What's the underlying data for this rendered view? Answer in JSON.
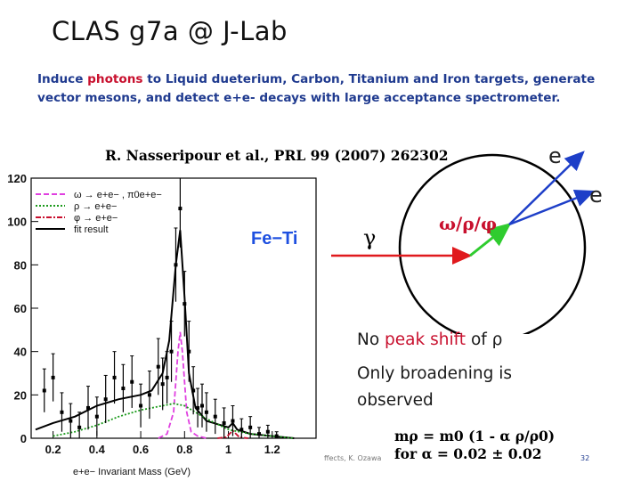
{
  "slide": {
    "title": "CLAS g7a @ J-Lab",
    "intro": {
      "line1_a": "Induce ",
      "line1_photons": "photons",
      "line1_b": " to Liquid dueterium, Carbon, Titanium and Iron  targets, generate",
      "line2": "vector mesons, and detect e+e- decays with large acceptance spectrometer."
    },
    "reference": "R. Nasseripour et al., PRL 99 (2007) 262302",
    "footer": "ffects, K. Ozawa",
    "page_number": "32"
  },
  "diagram": {
    "gamma_label": "γ",
    "meson_label": "ω/ρ/φ",
    "e1_label": "e",
    "e2_label": "e",
    "colors": {
      "gamma": "#e0191d",
      "meson": "#2fcc2f",
      "electron": "#1e3fc8",
      "meson_label": "#c8102e"
    }
  },
  "notes": {
    "no": "No ",
    "peak_shift": "peak shift",
    "of_rho": " of ρ",
    "line2a": "Only broadening is",
    "line2b": "observed"
  },
  "formula": {
    "line1": "mρ = m0 (1 - α ρ/ρ0)",
    "line2": "for α = 0.02 ± 0.02"
  },
  "chart_data": {
    "type": "line",
    "xlabel": "e+e− Invariant Mass (GeV)",
    "ylabel": "",
    "xlim": [
      0.1,
      1.4
    ],
    "ylim": [
      0,
      120
    ],
    "x_ticks": [
      "0.2",
      "0.4",
      "0.6",
      "0.8",
      "1",
      "1.2"
    ],
    "x_tick_values": [
      0.2,
      0.4,
      0.6,
      0.8,
      1.0,
      1.2
    ],
    "y_ticks": [
      "0",
      "20",
      "40",
      "60",
      "80",
      "100",
      "120"
    ],
    "y_tick_values": [
      0,
      20,
      40,
      60,
      80,
      100,
      120
    ],
    "panel_label": "Fe−Ti",
    "legend": [
      {
        "label": "ω → e+e− ,  π0e+e−",
        "color": "#e040e0",
        "style": "dashed"
      },
      {
        "label": "ρ → e+e−",
        "color": "#1a9a1a",
        "style": "dotted"
      },
      {
        "label": "φ → e+e−",
        "color": "#c8102e",
        "style": "dashdot"
      },
      {
        "label": "fit result",
        "color": "#000000",
        "style": "solid"
      }
    ],
    "data_points": {
      "x": [
        0.16,
        0.2,
        0.24,
        0.28,
        0.32,
        0.36,
        0.4,
        0.44,
        0.48,
        0.52,
        0.56,
        0.6,
        0.64,
        0.68,
        0.7,
        0.72,
        0.74,
        0.76,
        0.78,
        0.8,
        0.82,
        0.84,
        0.86,
        0.88,
        0.9,
        0.94,
        0.98,
        1.02,
        1.06,
        1.1,
        1.14,
        1.18,
        1.22
      ],
      "y": [
        22,
        28,
        12,
        8,
        5,
        14,
        10,
        18,
        28,
        23,
        26,
        15,
        20,
        33,
        25,
        28,
        40,
        80,
        106,
        62,
        40,
        22,
        14,
        15,
        12,
        10,
        7,
        8,
        4,
        5,
        2,
        3,
        1
      ],
      "yerr": [
        10,
        11,
        9,
        8,
        7,
        10,
        9,
        11,
        12,
        11,
        12,
        10,
        11,
        13,
        12,
        12,
        14,
        17,
        18,
        15,
        14,
        11,
        9,
        10,
        9,
        8,
        7,
        7,
        5,
        5,
        3,
        3,
        2
      ]
    },
    "series": [
      {
        "name": "fit result",
        "x": [
          0.12,
          0.2,
          0.3,
          0.4,
          0.5,
          0.6,
          0.65,
          0.7,
          0.73,
          0.76,
          0.78,
          0.8,
          0.82,
          0.85,
          0.9,
          1.0,
          1.02,
          1.04,
          1.1,
          1.2,
          1.3
        ],
        "y": [
          4,
          7,
          10,
          15,
          18,
          20,
          22,
          30,
          45,
          80,
          96,
          65,
          30,
          14,
          8,
          5,
          7,
          4,
          2,
          1,
          0
        ]
      },
      {
        "name": "ω",
        "x": [
          0.68,
          0.72,
          0.75,
          0.77,
          0.78,
          0.79,
          0.81,
          0.83,
          0.86,
          0.9
        ],
        "y": [
          0,
          2,
          12,
          40,
          49,
          40,
          12,
          3,
          1,
          0
        ]
      },
      {
        "name": "ρ",
        "x": [
          0.2,
          0.3,
          0.4,
          0.5,
          0.6,
          0.7,
          0.75,
          0.8,
          0.85,
          0.9,
          1.0,
          1.1,
          1.2,
          1.3
        ],
        "y": [
          1,
          3,
          6,
          10,
          13,
          15,
          16,
          15,
          12,
          9,
          4,
          2,
          1,
          0
        ]
      },
      {
        "name": "φ",
        "x": [
          0.95,
          0.99,
          1.01,
          1.02,
          1.03,
          1.05,
          1.09
        ],
        "y": [
          0,
          0.5,
          2.5,
          3.5,
          2.5,
          0.5,
          0
        ]
      }
    ]
  }
}
